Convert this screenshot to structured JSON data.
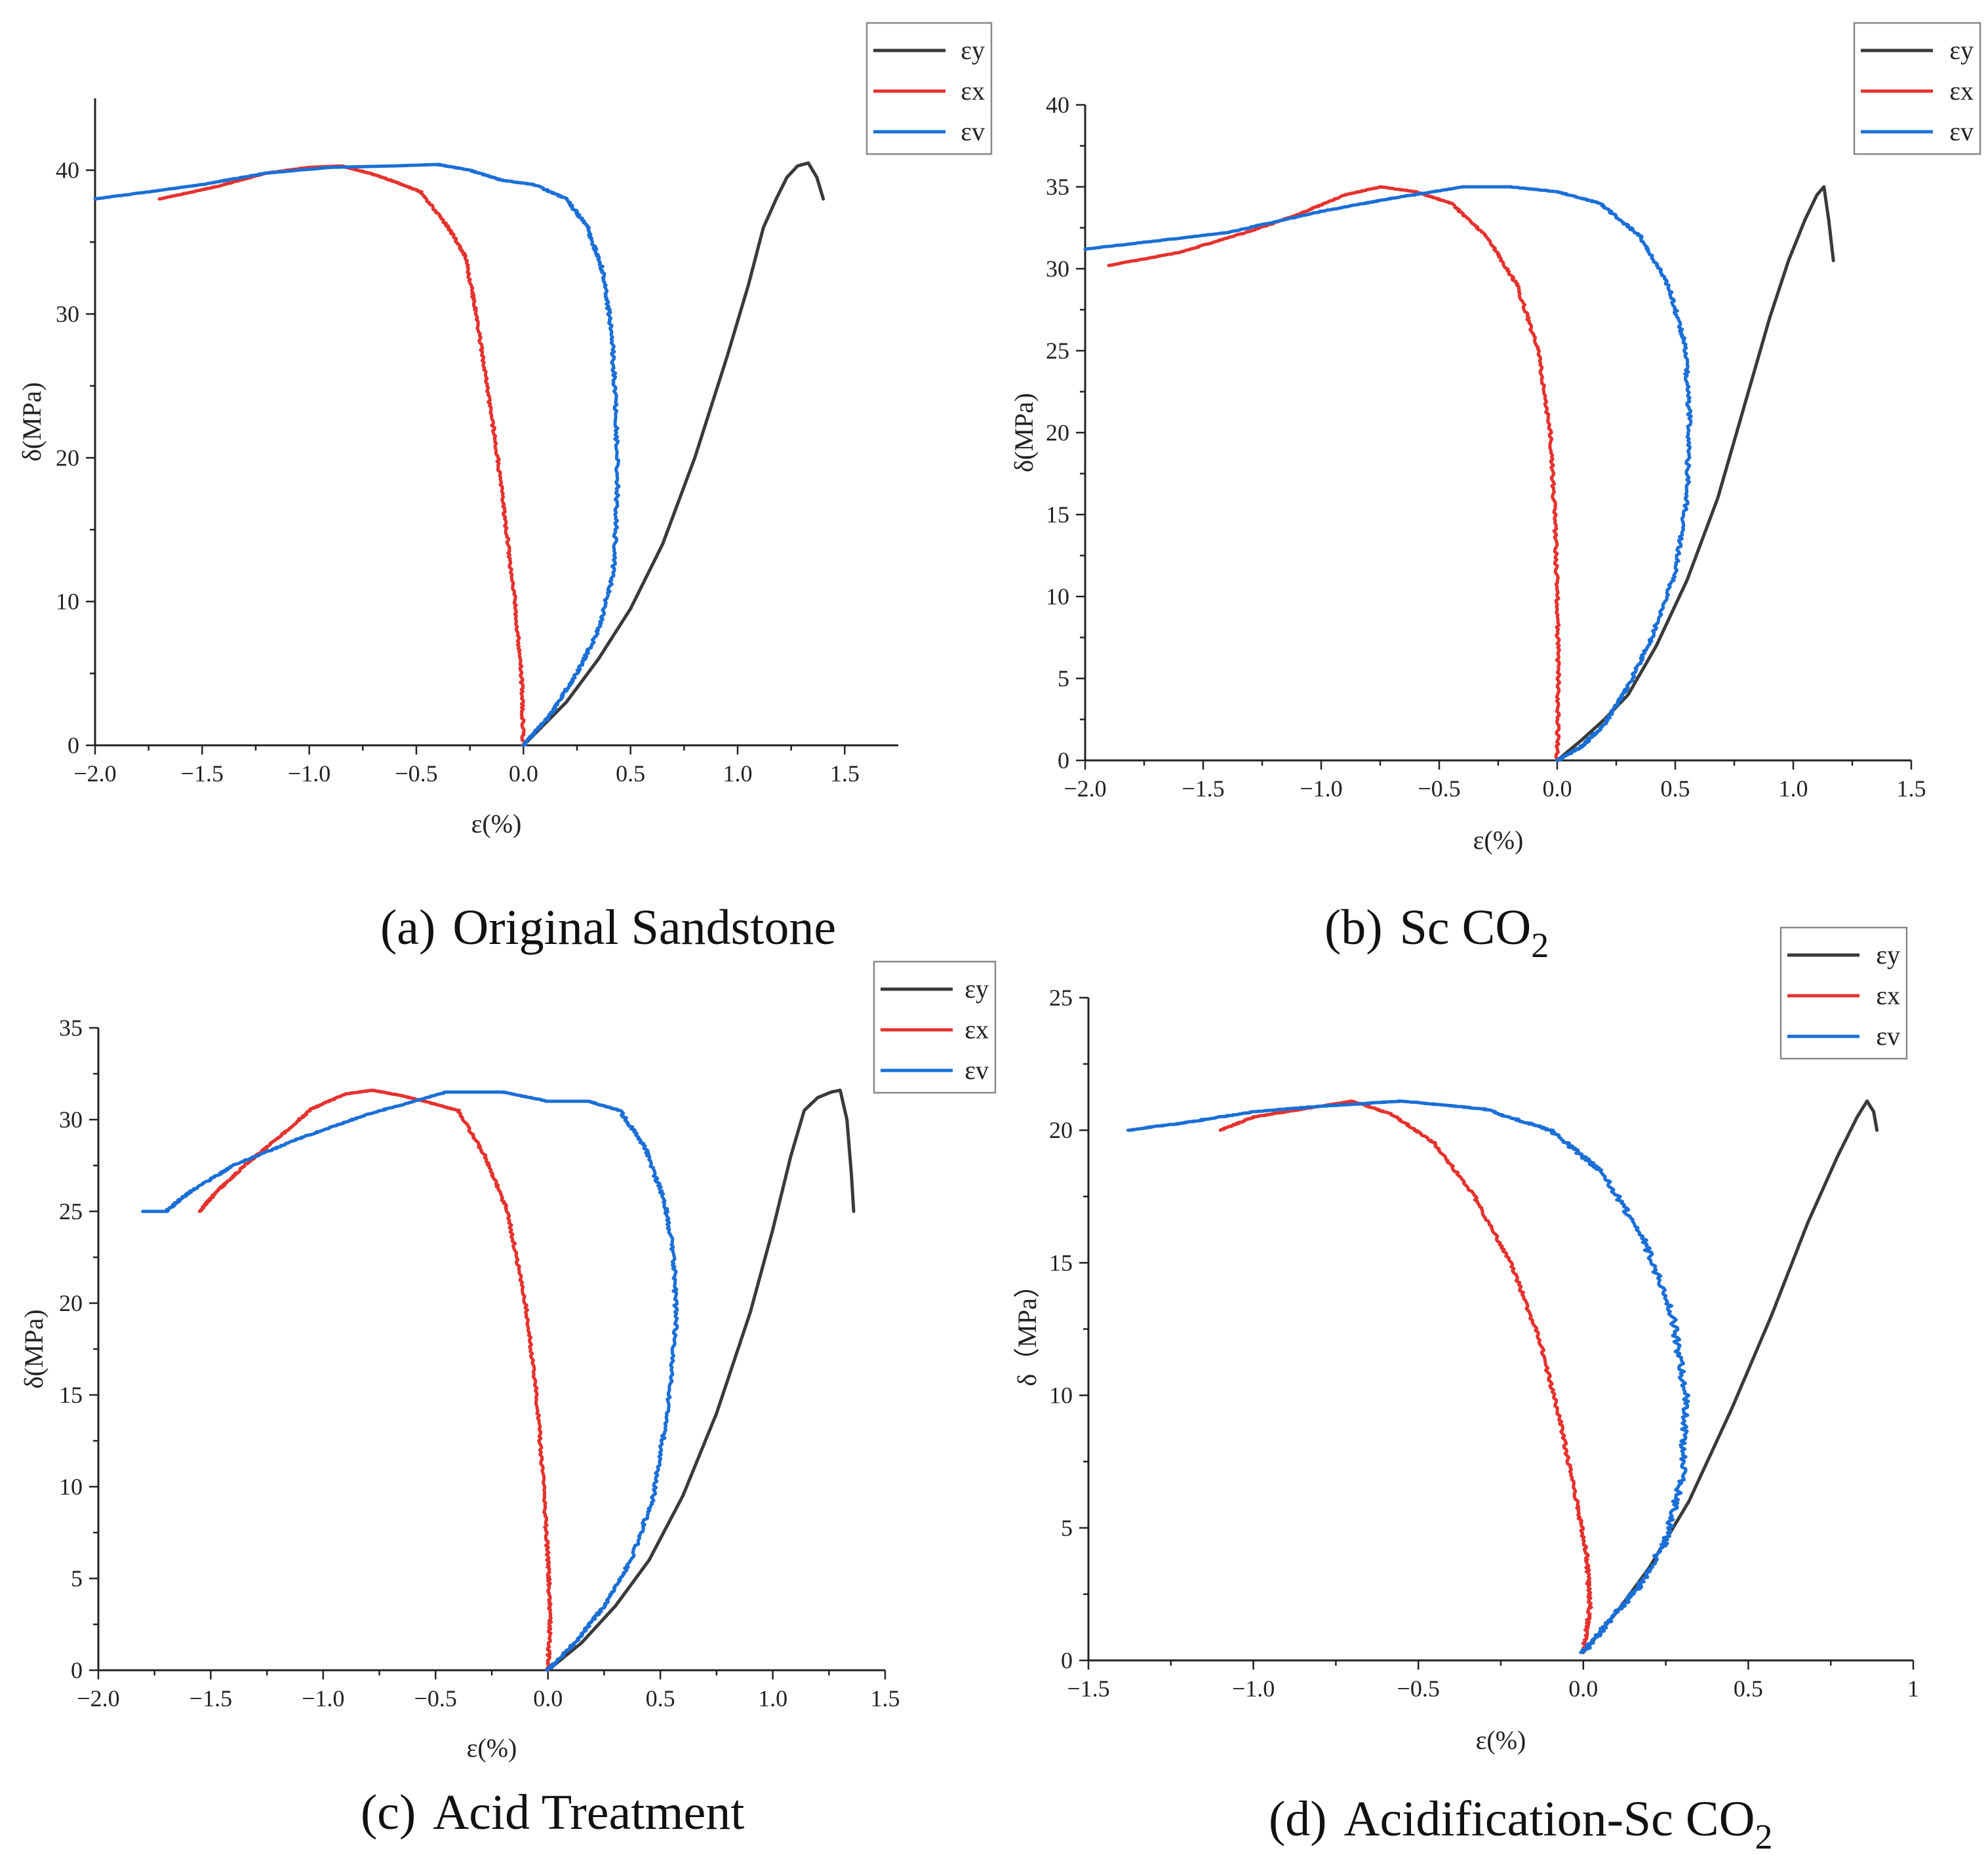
{
  "chart_data": [
    {
      "id": "a",
      "type": "line",
      "caption": {
        "label": "(a)",
        "text": "Original Sandstone",
        "subscript": ""
      },
      "xlabel": "ε(%)",
      "ylabel": "δ(MPa)",
      "xlim": [
        -2.0,
        1.75
      ],
      "ylim": [
        0,
        45
      ],
      "xticks": [
        -2.0,
        -1.5,
        -1.0,
        -0.5,
        0.0,
        0.5,
        1.0,
        1.5
      ],
      "xtick_labels": [
        "−2.0",
        "−1.5",
        "−1.0",
        "−0.5",
        "0.0",
        "0.5",
        "1.0",
        "1.5"
      ],
      "yticks": [
        0,
        10,
        20,
        30,
        40
      ],
      "ytick_labels": [
        "0",
        "10",
        "20",
        "30",
        "40"
      ],
      "legend": [
        "εy",
        "εx",
        "εv"
      ],
      "series": [
        {
          "name": "εy",
          "color": "#3a3a3a",
          "noise": 0.0,
          "points": [
            [
              0.0,
              0
            ],
            [
              0.1,
              1.5
            ],
            [
              0.2,
              3
            ],
            [
              0.35,
              6
            ],
            [
              0.5,
              9.5
            ],
            [
              0.65,
              14
            ],
            [
              0.8,
              20
            ],
            [
              0.95,
              27
            ],
            [
              1.05,
              32
            ],
            [
              1.12,
              36
            ],
            [
              1.18,
              38
            ],
            [
              1.23,
              39.5
            ],
            [
              1.28,
              40.3
            ],
            [
              1.33,
              40.5
            ],
            [
              1.37,
              39.5
            ],
            [
              1.4,
              38
            ]
          ]
        },
        {
          "name": "εx",
          "color": "#e5322e",
          "noise": 0.006,
          "points": [
            [
              0.0,
              0
            ],
            [
              -0.01,
              5
            ],
            [
              -0.04,
              10
            ],
            [
              -0.08,
              15
            ],
            [
              -0.12,
              20
            ],
            [
              -0.17,
              25
            ],
            [
              -0.22,
              30
            ],
            [
              -0.27,
              34
            ],
            [
              -0.35,
              36
            ],
            [
              -0.48,
              38.5
            ],
            [
              -0.6,
              39.2
            ],
            [
              -0.72,
              39.8
            ],
            [
              -0.85,
              40.3
            ],
            [
              -1.0,
              40.2
            ],
            [
              -1.2,
              39.8
            ],
            [
              -1.45,
              38.8
            ],
            [
              -1.7,
              38
            ]
          ]
        },
        {
          "name": "εv",
          "color": "#1a6fd6",
          "noise": 0.008,
          "points": [
            [
              0.0,
              0
            ],
            [
              0.12,
              2
            ],
            [
              0.25,
              5
            ],
            [
              0.35,
              8
            ],
            [
              0.42,
              12
            ],
            [
              0.44,
              18
            ],
            [
              0.43,
              24
            ],
            [
              0.41,
              29
            ],
            [
              0.37,
              33
            ],
            [
              0.3,
              36
            ],
            [
              0.2,
              38
            ],
            [
              0.05,
              39
            ],
            [
              -0.1,
              39.3
            ],
            [
              -0.25,
              40
            ],
            [
              -0.4,
              40.4
            ],
            [
              -0.6,
              40.3
            ],
            [
              -0.9,
              40.2
            ],
            [
              -1.2,
              39.8
            ],
            [
              -1.5,
              39
            ],
            [
              -2.0,
              38
            ]
          ]
        }
      ]
    },
    {
      "id": "b",
      "type": "line",
      "caption": {
        "label": "(b)",
        "text": "Sc CO",
        "subscript": "2"
      },
      "xlabel": "ε(%)",
      "ylabel": "δ(MPa)",
      "xlim": [
        -2.0,
        1.5
      ],
      "ylim": [
        0,
        40
      ],
      "xticks": [
        -2.0,
        -1.5,
        -1.0,
        -0.5,
        0.0,
        0.5,
        1.0,
        1.5
      ],
      "xtick_labels": [
        "−2.0",
        "−1.5",
        "−1.0",
        "−0.5",
        "0.0",
        "0.5",
        "1.0",
        "1.5"
      ],
      "yticks": [
        0,
        5,
        10,
        15,
        20,
        25,
        30,
        35,
        40
      ],
      "ytick_labels": [
        "0",
        "5",
        "10",
        "15",
        "20",
        "25",
        "30",
        "35",
        "40"
      ],
      "legend": [
        "εy",
        "εx",
        "εv"
      ],
      "series": [
        {
          "name": "εy",
          "color": "#3a3a3a",
          "noise": 0.0,
          "points": [
            [
              0.0,
              0
            ],
            [
              0.1,
              1.2
            ],
            [
              0.2,
              2.5
            ],
            [
              0.3,
              4
            ],
            [
              0.42,
              7
            ],
            [
              0.55,
              11
            ],
            [
              0.68,
              16
            ],
            [
              0.8,
              22
            ],
            [
              0.9,
              27
            ],
            [
              0.98,
              30.5
            ],
            [
              1.05,
              33
            ],
            [
              1.1,
              34.5
            ],
            [
              1.13,
              35
            ],
            [
              1.15,
              33
            ],
            [
              1.17,
              30.5
            ]
          ]
        },
        {
          "name": "εx",
          "color": "#e5322e",
          "noise": 0.006,
          "points": [
            [
              0.0,
              0
            ],
            [
              0.005,
              5
            ],
            [
              0.0,
              10
            ],
            [
              -0.01,
              15
            ],
            [
              -0.03,
              20
            ],
            [
              -0.08,
              25
            ],
            [
              -0.17,
              29
            ],
            [
              -0.3,
              32
            ],
            [
              -0.45,
              34
            ],
            [
              -0.6,
              34.7
            ],
            [
              -0.75,
              35
            ],
            [
              -0.9,
              34.5
            ],
            [
              -1.1,
              33.3
            ],
            [
              -1.3,
              32.3
            ],
            [
              -1.6,
              31
            ],
            [
              -1.9,
              30.2
            ]
          ]
        },
        {
          "name": "εv",
          "color": "#1a6fd6",
          "noise": 0.008,
          "points": [
            [
              0.0,
              0
            ],
            [
              0.1,
              0.8
            ],
            [
              0.2,
              2.2
            ],
            [
              0.3,
              4.5
            ],
            [
              0.4,
              7.5
            ],
            [
              0.5,
              11.5
            ],
            [
              0.55,
              16
            ],
            [
              0.56,
              21
            ],
            [
              0.54,
              25.5
            ],
            [
              0.47,
              29
            ],
            [
              0.35,
              32
            ],
            [
              0.18,
              34
            ],
            [
              0.0,
              34.7
            ],
            [
              -0.2,
              35
            ],
            [
              -0.4,
              35
            ],
            [
              -0.7,
              34.3
            ],
            [
              -1.0,
              33.5
            ],
            [
              -1.4,
              32.2
            ],
            [
              -2.0,
              31.2
            ]
          ]
        }
      ]
    },
    {
      "id": "c",
      "type": "line",
      "caption": {
        "label": "(c)",
        "text": "Acid Treatment",
        "subscript": ""
      },
      "xlabel": "ε(%)",
      "ylabel": "δ(MPa)",
      "xlim": [
        -2.0,
        1.5
      ],
      "ylim": [
        0,
        35
      ],
      "xticks": [
        -2.0,
        -1.5,
        -1.0,
        -0.5,
        0.0,
        0.5,
        1.0,
        1.5
      ],
      "xtick_labels": [
        "−2.0",
        "−1.5",
        "−1.0",
        "−0.5",
        "0.0",
        "0.5",
        "1.0",
        "1.5"
      ],
      "yticks": [
        0,
        5,
        10,
        15,
        20,
        25,
        30,
        35
      ],
      "ytick_labels": [
        "0",
        "5",
        "10",
        "15",
        "20",
        "25",
        "30",
        "35"
      ],
      "legend": [
        "εy",
        "εx",
        "εv"
      ],
      "series": [
        {
          "name": "εy",
          "color": "#3a3a3a",
          "noise": 0.0,
          "points": [
            [
              0.0,
              0
            ],
            [
              0.15,
              1.5
            ],
            [
              0.3,
              3.5
            ],
            [
              0.45,
              6
            ],
            [
              0.6,
              9.5
            ],
            [
              0.75,
              14
            ],
            [
              0.9,
              19.5
            ],
            [
              1.0,
              24
            ],
            [
              1.08,
              28
            ],
            [
              1.14,
              30.5
            ],
            [
              1.2,
              31.2
            ],
            [
              1.26,
              31.5
            ],
            [
              1.3,
              31.6
            ],
            [
              1.33,
              30
            ],
            [
              1.35,
              27
            ],
            [
              1.36,
              25
            ]
          ]
        },
        {
          "name": "εx",
          "color": "#e5322e",
          "noise": 0.006,
          "points": [
            [
              0.0,
              0
            ],
            [
              0.01,
              3
            ],
            [
              0.0,
              6
            ],
            [
              -0.02,
              10
            ],
            [
              -0.05,
              15
            ],
            [
              -0.1,
              20
            ],
            [
              -0.18,
              25
            ],
            [
              -0.28,
              28
            ],
            [
              -0.4,
              30.5
            ],
            [
              -0.55,
              31
            ],
            [
              -0.65,
              31.3
            ],
            [
              -0.78,
              31.6
            ],
            [
              -0.9,
              31.4
            ],
            [
              -1.05,
              30.6
            ],
            [
              -1.2,
              29
            ],
            [
              -1.35,
              27.5
            ],
            [
              -1.48,
              26
            ],
            [
              -1.55,
              25
            ]
          ]
        },
        {
          "name": "εv",
          "color": "#1a6fd6",
          "noise": 0.008,
          "points": [
            [
              0.0,
              0
            ],
            [
              0.12,
              1.5
            ],
            [
              0.25,
              3.5
            ],
            [
              0.37,
              6
            ],
            [
              0.47,
              9.5
            ],
            [
              0.53,
              14
            ],
            [
              0.57,
              19
            ],
            [
              0.56,
              22.5
            ],
            [
              0.52,
              25.5
            ],
            [
              0.43,
              28.5
            ],
            [
              0.32,
              30.5
            ],
            [
              0.18,
              31
            ],
            [
              0.0,
              31
            ],
            [
              -0.2,
              31.5
            ],
            [
              -0.45,
              31.5
            ],
            [
              -0.8,
              30.3
            ],
            [
              -1.1,
              29
            ],
            [
              -1.4,
              27.5
            ],
            [
              -1.6,
              26
            ],
            [
              -1.7,
              25
            ],
            [
              -1.8,
              25
            ]
          ]
        }
      ]
    },
    {
      "id": "d",
      "type": "line",
      "caption": {
        "label": "(d)",
        "text": "Acidification-Sc CO",
        "subscript": "2"
      },
      "xlabel": "ε(%)",
      "ylabel": "δ（MPa）",
      "xlim": [
        -1.5,
        1.0
      ],
      "ylim": [
        0,
        25
      ],
      "xticks": [
        -1.5,
        -1.0,
        -0.5,
        0.0,
        0.5,
        1.0
      ],
      "xtick_labels": [
        "−1.5",
        "−1.0",
        "−0.5",
        "0.0",
        "0.5",
        "1"
      ],
      "yticks": [
        0,
        5,
        10,
        15,
        20,
        25
      ],
      "ytick_labels": [
        "0",
        "5",
        "10",
        "15",
        "20",
        "25"
      ],
      "legend": [
        "εy",
        "εx",
        "εv"
      ],
      "series": [
        {
          "name": "εy",
          "color": "#3a3a3a",
          "noise": 0.0,
          "points": [
            [
              0.0,
              0.3
            ],
            [
              0.1,
              1.8
            ],
            [
              0.2,
              3.5
            ],
            [
              0.32,
              6
            ],
            [
              0.45,
              9.5
            ],
            [
              0.57,
              13
            ],
            [
              0.68,
              16.5
            ],
            [
              0.77,
              19
            ],
            [
              0.83,
              20.5
            ],
            [
              0.86,
              21.1
            ],
            [
              0.88,
              20.7
            ],
            [
              0.89,
              20
            ]
          ]
        },
        {
          "name": "εx",
          "color": "#e5322e",
          "noise": 0.005,
          "points": [
            [
              0.0,
              0.3
            ],
            [
              0.02,
              2
            ],
            [
              0.01,
              4
            ],
            [
              -0.02,
              6
            ],
            [
              -0.07,
              9
            ],
            [
              -0.13,
              12
            ],
            [
              -0.22,
              15
            ],
            [
              -0.33,
              17.5
            ],
            [
              -0.45,
              19.5
            ],
            [
              -0.58,
              20.6
            ],
            [
              -0.7,
              21.1
            ],
            [
              -0.85,
              20.8
            ],
            [
              -1.0,
              20.5
            ],
            [
              -1.1,
              20
            ]
          ]
        },
        {
          "name": "εv",
          "color": "#1a6fd6",
          "noise": 0.01,
          "points": [
            [
              0.0,
              0.3
            ],
            [
              0.08,
              1.5
            ],
            [
              0.17,
              2.8
            ],
            [
              0.25,
              4.5
            ],
            [
              0.3,
              7
            ],
            [
              0.31,
              10
            ],
            [
              0.27,
              13
            ],
            [
              0.18,
              16
            ],
            [
              0.05,
              18.5
            ],
            [
              -0.1,
              20
            ],
            [
              -0.3,
              20.8
            ],
            [
              -0.55,
              21.1
            ],
            [
              -0.8,
              20.9
            ],
            [
              -1.0,
              20.7
            ],
            [
              -1.2,
              20.3
            ],
            [
              -1.38,
              20
            ]
          ]
        }
      ]
    }
  ]
}
